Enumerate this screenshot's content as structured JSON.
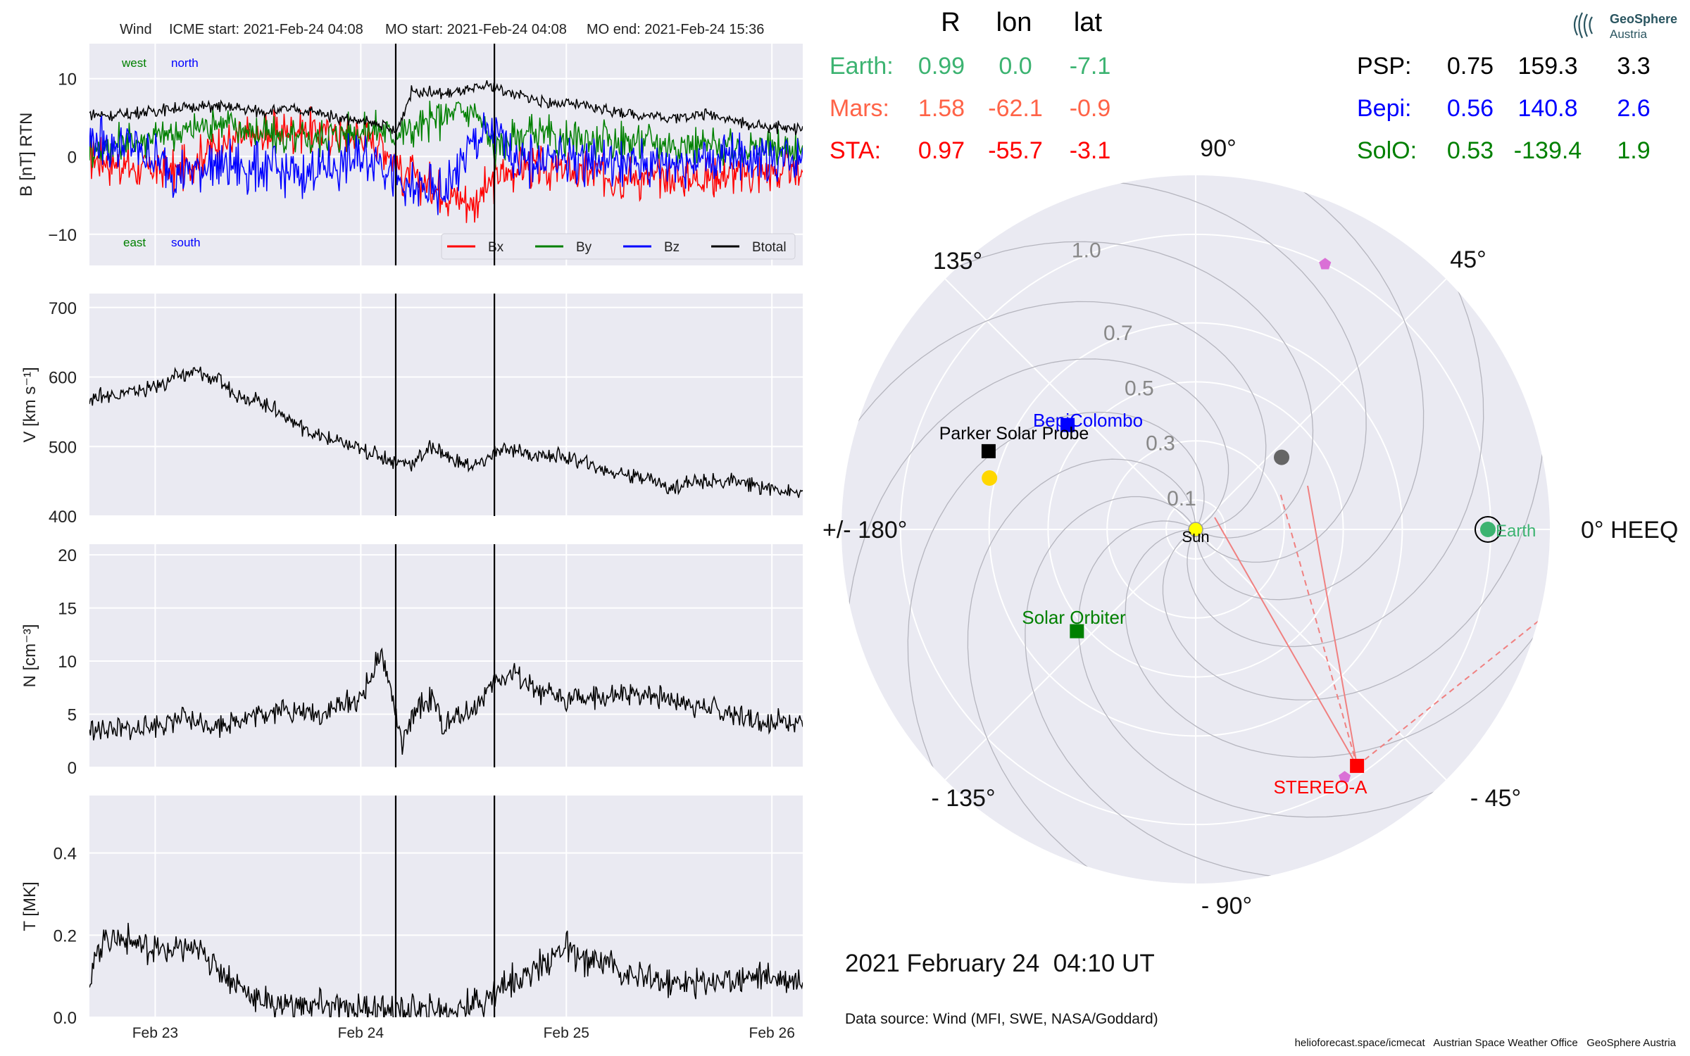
{
  "header": {
    "spacecraft": "Wind",
    "icme_start": "ICME start: 2021-Feb-24 04:08",
    "mo_start": "MO start: 2021-Feb-24 04:08",
    "mo_end": "MO end: 2021-Feb-24 15:36"
  },
  "logo": {
    "line1": "GeoSphere",
    "line2": "Austria"
  },
  "position_table": {
    "headers": [
      "R",
      "lon",
      "lat"
    ],
    "left": [
      {
        "name": "Earth:",
        "r": "0.99",
        "lon": "0.0",
        "lat": "-7.1",
        "color": "#3cb371"
      },
      {
        "name": "Mars:",
        "r": "1.58",
        "lon": "-62.1",
        "lat": "-0.9",
        "color": "#ff6347"
      },
      {
        "name": "STA:",
        "r": "0.97",
        "lon": "-55.7",
        "lat": "-3.1",
        "color": "#ff0000"
      }
    ],
    "right": [
      {
        "name": "PSP:",
        "r": "0.75",
        "lon": "159.3",
        "lat": "3.3",
        "color": "#000000"
      },
      {
        "name": "Bepi:",
        "r": "0.56",
        "lon": "140.8",
        "lat": "2.6",
        "color": "#0000ff"
      },
      {
        "name": "SolO:",
        "r": "0.53",
        "lon": "-139.4",
        "lat": "1.9",
        "color": "#008000"
      }
    ]
  },
  "timestamp": "2021 February 24  04:10 UT",
  "data_source": "Data source: Wind (MFI, SWE, NASA/Goddard)",
  "footer": "helioforecast.space/icmecat   Austrian Space Weather Office   GeoSphere Austria",
  "chart_data": [
    {
      "type": "line",
      "panel": "magnetic-field",
      "ylabel": "B [nT] RTN",
      "ylim": [
        -14,
        14.5
      ],
      "yticks": [
        -10,
        0,
        10
      ],
      "ytick_labels": [
        "−10",
        "0",
        "10"
      ],
      "xlim_days": [
        22.68,
        26.15
      ],
      "corner_labels": {
        "west": "west",
        "north": "north",
        "east": "east",
        "south": "south"
      },
      "legend": [
        "Bx",
        "By",
        "Bz",
        "Btotal"
      ],
      "colors": {
        "Bx": "#ff0000",
        "By": "#008000",
        "Bz": "#0000ff",
        "Btotal": "#000000"
      },
      "series": [
        {
          "name": "Btotal",
          "x": [
            22.68,
            22.8,
            22.95,
            23.1,
            23.3,
            23.5,
            23.7,
            23.9,
            24.1,
            24.17,
            24.25,
            24.4,
            24.55,
            24.62,
            24.75,
            24.9,
            25.1,
            25.3,
            25.5,
            25.7,
            25.9,
            26.15
          ],
          "y": [
            5.5,
            5.2,
            5.8,
            6.2,
            6.5,
            5.8,
            6.0,
            5.0,
            4.0,
            3.0,
            8.5,
            8.0,
            8.5,
            9.2,
            8.0,
            7.0,
            6.5,
            5.5,
            5.0,
            5.5,
            4.0,
            3.5
          ]
        },
        {
          "name": "Bx",
          "x": [
            22.68,
            22.9,
            23.1,
            23.3,
            23.5,
            23.7,
            23.9,
            24.1,
            24.2,
            24.4,
            24.55,
            24.65,
            24.8,
            25.0,
            25.3,
            25.6,
            25.9,
            26.15
          ],
          "y": [
            0,
            -1.5,
            -2,
            1.5,
            2.5,
            3.5,
            3.0,
            2.0,
            -2,
            -4.5,
            -6,
            -3,
            -1,
            -2,
            -2.5,
            -3,
            -2,
            -2
          ]
        },
        {
          "name": "By",
          "x": [
            22.68,
            22.9,
            23.1,
            23.3,
            23.5,
            23.7,
            23.9,
            24.1,
            24.2,
            24.4,
            24.55,
            24.65,
            24.8,
            25.0,
            25.3,
            25.6,
            25.9,
            26.15
          ],
          "y": [
            1,
            2,
            3,
            4.5,
            3,
            2,
            3,
            3.5,
            3,
            5,
            6,
            1,
            3,
            2,
            2,
            1.5,
            1,
            1
          ]
        },
        {
          "name": "Bz",
          "x": [
            22.68,
            22.9,
            23.1,
            23.3,
            23.5,
            23.7,
            23.9,
            24.1,
            24.2,
            24.4,
            24.55,
            24.65,
            24.8,
            25.0,
            25.3,
            25.6,
            25.9,
            26.15
          ],
          "y": [
            2,
            1,
            -2,
            -1,
            -1.5,
            -2.5,
            -1,
            0,
            -4,
            -5,
            2,
            3,
            -1,
            0,
            -1,
            -0.5,
            0,
            0
          ]
        }
      ],
      "markers_days": [
        24.17,
        24.65
      ]
    },
    {
      "type": "line",
      "panel": "speed",
      "ylabel": "V [km s⁻¹]",
      "ylim": [
        400,
        720
      ],
      "yticks": [
        400,
        500,
        600,
        700
      ],
      "x": [
        22.68,
        22.8,
        22.9,
        23.0,
        23.1,
        23.2,
        23.3,
        23.4,
        23.5,
        23.6,
        23.7,
        23.8,
        23.9,
        24.0,
        24.1,
        24.17,
        24.25,
        24.35,
        24.45,
        24.55,
        24.65,
        24.75,
        24.85,
        25.0,
        25.2,
        25.4,
        25.5,
        25.6,
        25.8,
        26.0,
        26.15
      ],
      "y": [
        570,
        575,
        580,
        585,
        600,
        608,
        595,
        575,
        565,
        550,
        530,
        515,
        505,
        495,
        485,
        478,
        476,
        500,
        480,
        470,
        490,
        497,
        487,
        485,
        465,
        455,
        440,
        448,
        450,
        440,
        432
      ],
      "markers_days": [
        24.17,
        24.65
      ]
    },
    {
      "type": "line",
      "panel": "density",
      "ylabel": "N [cm⁻³]",
      "ylim": [
        0,
        21
      ],
      "yticks": [
        0,
        5,
        10,
        15,
        20
      ],
      "x": [
        22.68,
        22.9,
        23.1,
        23.3,
        23.5,
        23.6,
        23.8,
        24.0,
        24.05,
        24.1,
        24.15,
        24.2,
        24.27,
        24.35,
        24.4,
        24.45,
        24.55,
        24.65,
        24.75,
        24.85,
        25.0,
        25.2,
        25.4,
        25.6,
        25.8,
        26.0,
        26.15
      ],
      "y": [
        3.5,
        3.5,
        4.5,
        4.0,
        5.0,
        5.5,
        5.0,
        6.5,
        8.5,
        10.8,
        7.0,
        2.0,
        5.5,
        6.5,
        3.5,
        4.5,
        5.5,
        8.0,
        9.0,
        7.0,
        6.5,
        6.5,
        7.0,
        6.0,
        5.0,
        4.2,
        4.5
      ],
      "markers_days": [
        24.17,
        24.65
      ]
    },
    {
      "type": "line",
      "panel": "temperature",
      "ylabel": "T [MK]",
      "ylim": [
        0,
        0.54
      ],
      "yticks": [
        0.0,
        0.2,
        0.4
      ],
      "ytick_labels": [
        "0.0",
        "0.2",
        "0.4"
      ],
      "x": [
        22.68,
        22.75,
        22.85,
        22.95,
        23.05,
        23.15,
        23.25,
        23.35,
        23.5,
        23.7,
        23.9,
        24.1,
        24.3,
        24.45,
        24.6,
        24.7,
        24.85,
        25.0,
        25.1,
        25.2,
        25.3,
        25.5,
        25.7,
        25.9,
        26.0,
        26.15
      ],
      "y": [
        0.1,
        0.2,
        0.19,
        0.17,
        0.16,
        0.17,
        0.15,
        0.1,
        0.04,
        0.03,
        0.025,
        0.02,
        0.015,
        0.02,
        0.04,
        0.08,
        0.12,
        0.17,
        0.13,
        0.14,
        0.1,
        0.08,
        0.09,
        0.1,
        0.1,
        0.09
      ],
      "markers_days": [
        24.17,
        24.65
      ]
    },
    {
      "type": "polar-scatter",
      "panel": "orbit",
      "frame_label": "0° HEEQ",
      "angle_labels": [
        {
          "deg": 0,
          "text": "0° HEEQ"
        },
        {
          "deg": 45,
          "text": "45°"
        },
        {
          "deg": 90,
          "text": "90°"
        },
        {
          "deg": 135,
          "text": "135°"
        },
        {
          "deg": 180,
          "text": "+/- 180°"
        },
        {
          "deg": -135,
          "text": "- 135°"
        },
        {
          "deg": -90,
          "text": "- 90°"
        },
        {
          "deg": -45,
          "text": "- 45°"
        }
      ],
      "r_ticks": [
        0.1,
        0.3,
        0.5,
        0.7,
        1.0
      ],
      "r_tick_labels": [
        "0.1",
        "0.3",
        "0.5",
        "0.7",
        "1.0"
      ],
      "r_max": 1.2,
      "objects": [
        {
          "name": "Sun",
          "r": 0.0,
          "lon": 0,
          "marker": "circle",
          "color": "#ffff00"
        },
        {
          "name": "Earth",
          "r": 0.99,
          "lon": 0.0,
          "marker": "circle",
          "color": "#3cb371"
        },
        {
          "name": "STEREO-A",
          "r": 0.97,
          "lon": -55.7,
          "marker": "square",
          "color": "#ff0000"
        },
        {
          "name": "Parker Solar Probe",
          "r": 0.75,
          "lon": 159.3,
          "marker": "square",
          "color": "#000000"
        },
        {
          "name": "BepiColombo",
          "r": 0.56,
          "lon": 140.8,
          "marker": "square",
          "color": "#0000ff"
        },
        {
          "name": "Solar Orbiter",
          "r": 0.53,
          "lon": -139.4,
          "marker": "square",
          "color": "#008000"
        },
        {
          "name": "Venus",
          "r": 0.72,
          "lon": 166,
          "marker": "circle",
          "color": "#ffd700"
        },
        {
          "name": "Mercury",
          "r": 0.38,
          "lon": 40,
          "marker": "circle",
          "color": "#666666"
        },
        {
          "name": "Mars",
          "r": 1.0,
          "lon": 64,
          "marker": "pentagon",
          "color": "#da70d6"
        },
        {
          "name": "Mars2",
          "r": 0.98,
          "lon": -59,
          "marker": "pentagon",
          "color": "#da70d6"
        }
      ]
    }
  ]
}
